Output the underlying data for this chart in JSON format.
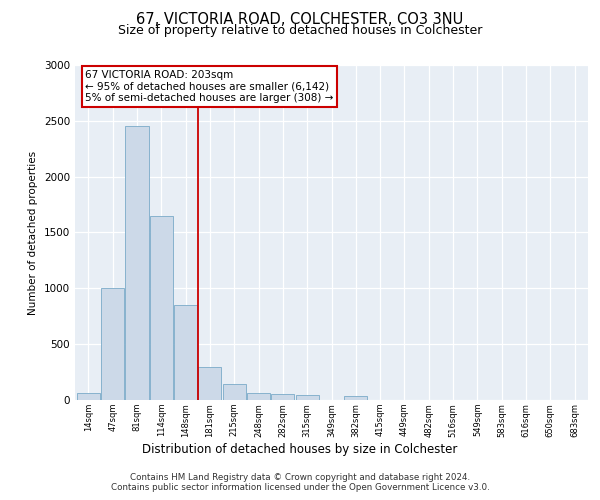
{
  "title1": "67, VICTORIA ROAD, COLCHESTER, CO3 3NU",
  "title2": "Size of property relative to detached houses in Colchester",
  "xlabel": "Distribution of detached houses by size in Colchester",
  "ylabel": "Number of detached properties",
  "categories": [
    "14sqm",
    "47sqm",
    "81sqm",
    "114sqm",
    "148sqm",
    "181sqm",
    "215sqm",
    "248sqm",
    "282sqm",
    "315sqm",
    "349sqm",
    "382sqm",
    "415sqm",
    "449sqm",
    "482sqm",
    "516sqm",
    "549sqm",
    "583sqm",
    "616sqm",
    "650sqm",
    "683sqm"
  ],
  "values": [
    60,
    1000,
    2450,
    1650,
    850,
    300,
    140,
    60,
    55,
    45,
    0,
    35,
    0,
    0,
    0,
    0,
    0,
    0,
    0,
    0,
    0
  ],
  "bar_color": "#ccd9e8",
  "bar_edge_color": "#7aaac8",
  "vline_x_index": 4.5,
  "vline_color": "#cc0000",
  "annotation_text": "67 VICTORIA ROAD: 203sqm\n← 95% of detached houses are smaller (6,142)\n5% of semi-detached houses are larger (308) →",
  "annotation_box_facecolor": "#ffffff",
  "annotation_box_edgecolor": "#cc0000",
  "ylim": [
    0,
    3000
  ],
  "yticks": [
    0,
    500,
    1000,
    1500,
    2000,
    2500,
    3000
  ],
  "grid_color": "#dde6f0",
  "background_color": "#e8eef5",
  "footer_line1": "Contains HM Land Registry data © Crown copyright and database right 2024.",
  "footer_line2": "Contains public sector information licensed under the Open Government Licence v3.0."
}
